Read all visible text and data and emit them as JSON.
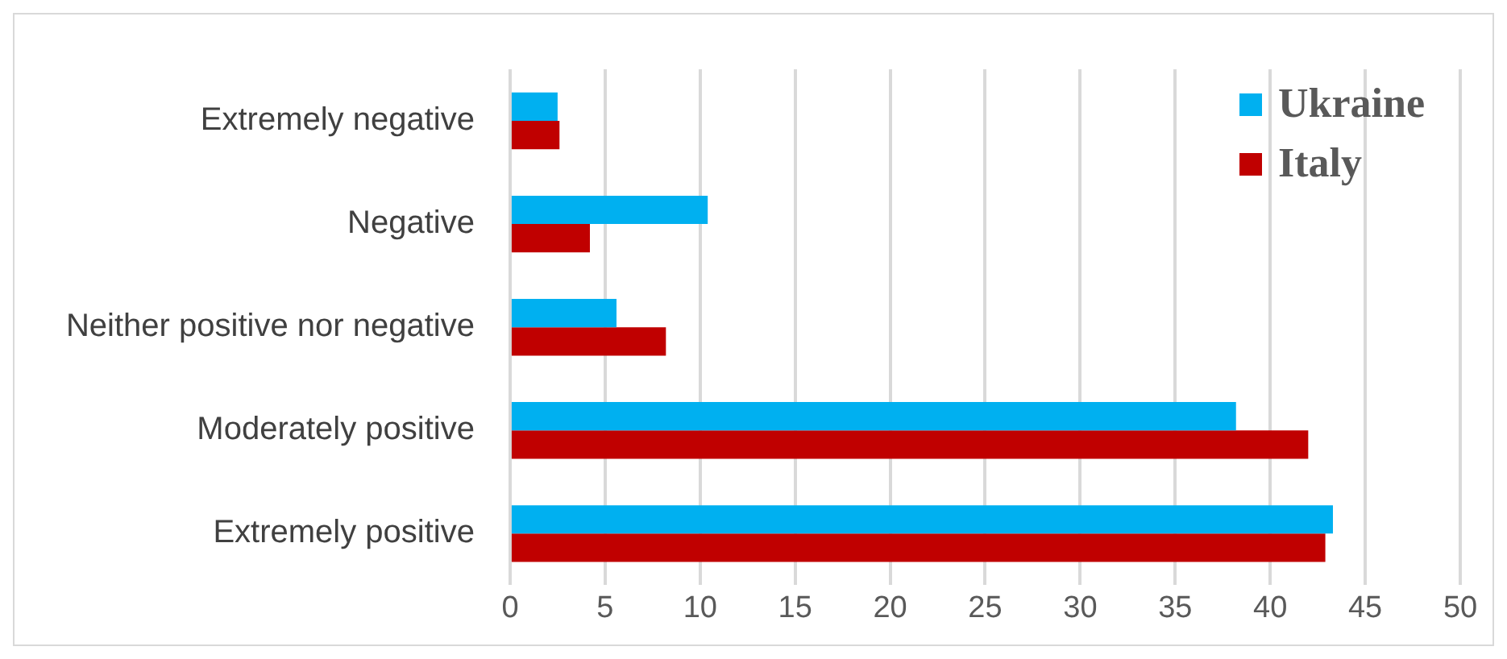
{
  "chart_data": {
    "type": "bar",
    "orientation": "horizontal",
    "categories": [
      "Extremely negative",
      "Negative",
      "Neither positive nor negative",
      "Moderately positive",
      "Extremely positive"
    ],
    "series": [
      {
        "name": "Ukraine",
        "color": "#00b0f0",
        "values": [
          2.5,
          10.4,
          5.6,
          38.2,
          43.3
        ]
      },
      {
        "name": "Italy",
        "color": "#c00000",
        "values": [
          2.6,
          4.2,
          8.2,
          42.0,
          42.9
        ]
      }
    ],
    "xlim": [
      0,
      50
    ],
    "xticks": [
      0,
      5,
      10,
      15,
      20,
      25,
      30,
      35,
      40,
      45,
      50
    ],
    "grid": "x",
    "legend": "top right"
  }
}
